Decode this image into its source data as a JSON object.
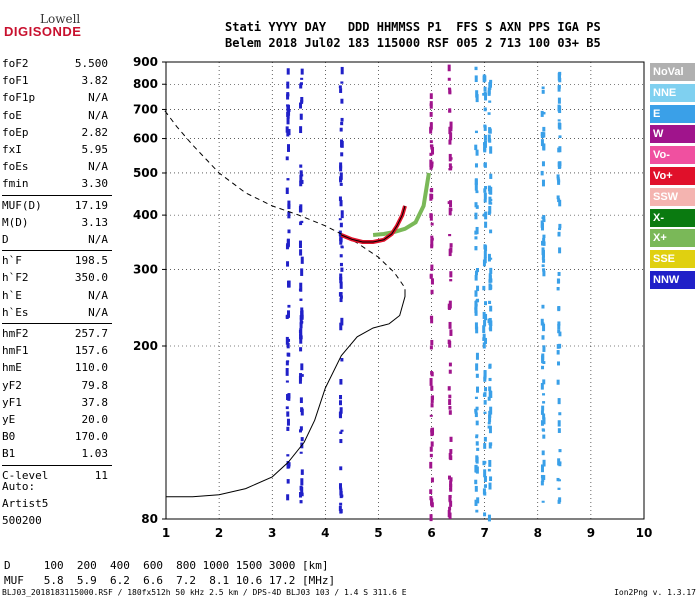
{
  "logo": {
    "line1": "Lowell",
    "line2": "DIGISONDE"
  },
  "header": {
    "line1": "Stati YYYY DAY   DDD HHMMSS P1  FFS S AXN PPS IGA PS",
    "line2": "Belem 2018 Jul02 183 115000 RSF 005 2 713 100 03+ B5"
  },
  "params": [
    {
      "label": "foF2",
      "value": "5.500"
    },
    {
      "label": "foF1",
      "value": "3.82"
    },
    {
      "label": "foF1p",
      "value": "N/A"
    },
    {
      "label": "foE",
      "value": "N/A"
    },
    {
      "label": "foEp",
      "value": "2.82"
    },
    {
      "label": "fxI",
      "value": "5.95"
    },
    {
      "label": "foEs",
      "value": "N/A"
    },
    {
      "label": "fmin",
      "value": "3.30"
    },
    {
      "label": "MUF(D)",
      "value": "17.19"
    },
    {
      "label": "M(D)",
      "value": "3.13"
    },
    {
      "label": "D",
      "value": "N/A"
    },
    {
      "label": "h`F",
      "value": "198.5"
    },
    {
      "label": "h`F2",
      "value": "350.0"
    },
    {
      "label": "h`E",
      "value": "N/A"
    },
    {
      "label": "h`Es",
      "value": "N/A"
    },
    {
      "label": "hmF2",
      "value": "257.7"
    },
    {
      "label": "hmF1",
      "value": "157.6"
    },
    {
      "label": "hmE",
      "value": "110.0"
    },
    {
      "label": "yF2",
      "value": "79.8"
    },
    {
      "label": "yF1",
      "value": "37.8"
    },
    {
      "label": "yE",
      "value": "20.0"
    },
    {
      "label": "B0",
      "value": "170.0"
    },
    {
      "label": "B1",
      "value": "1.03"
    },
    {
      "label": "C-level",
      "value": "11"
    }
  ],
  "auto": {
    "line1": "Auto:",
    "line2": "Artist5",
    "line3": "500200"
  },
  "legend": [
    {
      "label": "NoVal",
      "color": "#b0b0b0",
      "text": "#ffffff"
    },
    {
      "label": "NNE",
      "color": "#7fd0f0",
      "text": "#ffffff"
    },
    {
      "label": "E",
      "color": "#3aa0e8",
      "text": "#ffffff"
    },
    {
      "label": "W",
      "color": "#a0148c",
      "text": "#ffffff"
    },
    {
      "label": "Vo-",
      "color": "#f050a0",
      "text": "#ffffff"
    },
    {
      "label": "Vo+",
      "color": "#e0102a",
      "text": "#ffffff"
    },
    {
      "label": "SSW",
      "color": "#f4b4b0",
      "text": "#ffffff"
    },
    {
      "label": "X-",
      "color": "#0a7a10",
      "text": "#ffffff"
    },
    {
      "label": "X+",
      "color": "#7ab858",
      "text": "#ffffff"
    },
    {
      "label": "SSE",
      "color": "#e0d010",
      "text": "#ffffff"
    },
    {
      "label": "NNW",
      "color": "#2020c8",
      "text": "#ffffff"
    }
  ],
  "muf_table": {
    "line1": "D     100  200  400  600  800 1000 1500 3000 [km]",
    "line2": "MUF   5.8  5.9  6.2  6.6  7.2  8.1 10.6 17.2 [MHz]"
  },
  "footer": {
    "left": "BLJ03_2018183115000.RSF / 180fx512h 50 kHz 2.5 km / DPS-4D BLJ03 103 / 1.4 S 311.6 E",
    "right": "Ion2Png v. 1.3.17"
  },
  "chart_data": {
    "type": "scatter",
    "title": "",
    "xlabel": "",
    "ylabel": "",
    "xlim": [
      1,
      10
    ],
    "ylim": [
      80,
      900
    ],
    "xticks": [
      "1",
      "2",
      "3",
      "4",
      "5",
      "6",
      "7",
      "8",
      "9",
      "10"
    ],
    "yticks": [
      "80",
      "200",
      "300",
      "400",
      "500",
      "600",
      "700",
      "800",
      "900"
    ],
    "yscale": "log",
    "grid": true,
    "legend_position": "right",
    "profile_curve": {
      "name": "",
      "x": [
        1.0,
        1.5,
        2.0,
        2.5,
        3.0,
        3.3,
        3.6,
        3.8,
        4.0,
        4.3,
        4.6,
        4.9,
        5.2,
        5.4,
        5.5,
        5.5
      ],
      "y": [
        90,
        90,
        91,
        94,
        100,
        108,
        120,
        135,
        160,
        190,
        210,
        220,
        225,
        235,
        260,
        270
      ]
    },
    "ne_dashed_curve": {
      "name": "",
      "x": [
        0.98,
        1.2,
        1.5,
        2.0,
        2.5,
        3.0,
        3.5,
        4.0,
        4.3,
        4.6,
        5.0,
        5.3,
        5.5
      ],
      "y": [
        695,
        640,
        580,
        500,
        450,
        420,
        400,
        378,
        362,
        345,
        320,
        295,
        272
      ]
    },
    "trace_O": {
      "name": "",
      "x": [
        4.3,
        4.5,
        4.7,
        4.9,
        5.1,
        5.25,
        5.35,
        5.45,
        5.5
      ],
      "y": [
        360,
        352,
        347,
        347,
        351,
        362,
        378,
        400,
        420
      ]
    },
    "trace_X": {
      "name": "",
      "x": [
        4.9,
        5.1,
        5.3,
        5.5,
        5.7,
        5.85,
        5.95
      ],
      "y": [
        360,
        362,
        366,
        372,
        385,
        420,
        500
      ]
    },
    "noise_bands": [
      {
        "x": 3.3,
        "color": "#2020c8"
      },
      {
        "x": 3.55,
        "color": "#2020c8"
      },
      {
        "x": 4.3,
        "color": "#2020c8"
      },
      {
        "x": 6.0,
        "color": "#a0148c"
      },
      {
        "x": 6.35,
        "color": "#a0148c"
      },
      {
        "x": 6.85,
        "color": "#3aa0e8"
      },
      {
        "x": 7.0,
        "color": "#3aa0e8"
      },
      {
        "x": 7.1,
        "color": "#3aa0e8"
      },
      {
        "x": 8.1,
        "color": "#3aa0e8"
      },
      {
        "x": 8.4,
        "color": "#3aa0e8"
      }
    ]
  }
}
